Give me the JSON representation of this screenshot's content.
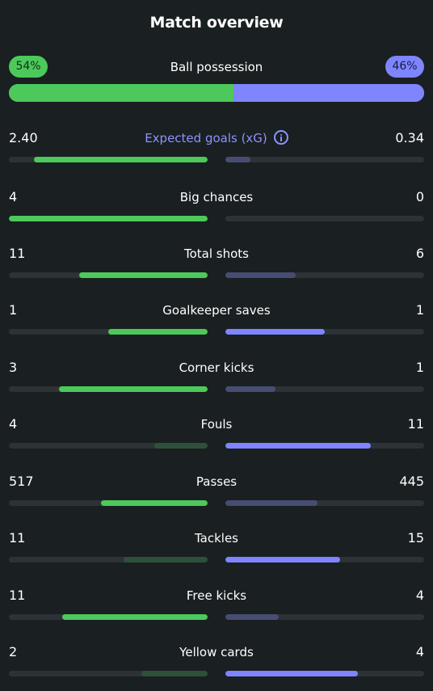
{
  "title": "Match overview",
  "colors": {
    "home": "#4cc95a",
    "away": "#7e85ff",
    "home_dim": "#2f5038",
    "away_dim": "#474d72",
    "track": "#2c3236",
    "background": "#1a1f21"
  },
  "possession": {
    "label": "Ball possession",
    "home_text": "54%",
    "away_text": "46%",
    "home": 54,
    "away": 46
  },
  "stats": [
    {
      "label": "Expected goals (xG)",
      "home_text": "2.40",
      "away_text": "0.34",
      "home": 2.4,
      "away": 0.34,
      "accent": true,
      "info_icon": "info-icon"
    },
    {
      "label": "Big chances",
      "home_text": "4",
      "away_text": "0",
      "home": 4,
      "away": 0
    },
    {
      "label": "Total shots",
      "home_text": "11",
      "away_text": "6",
      "home": 11,
      "away": 6
    },
    {
      "label": "Goalkeeper saves",
      "home_text": "1",
      "away_text": "1",
      "home": 1,
      "away": 1
    },
    {
      "label": "Corner kicks",
      "home_text": "3",
      "away_text": "1",
      "home": 3,
      "away": 1
    },
    {
      "label": "Fouls",
      "home_text": "4",
      "away_text": "11",
      "home": 4,
      "away": 11
    },
    {
      "label": "Passes",
      "home_text": "517",
      "away_text": "445",
      "home": 517,
      "away": 445
    },
    {
      "label": "Tackles",
      "home_text": "11",
      "away_text": "15",
      "home": 11,
      "away": 15
    },
    {
      "label": "Free kicks",
      "home_text": "11",
      "away_text": "4",
      "home": 11,
      "away": 4
    },
    {
      "label": "Yellow cards",
      "home_text": "2",
      "away_text": "4",
      "home": 2,
      "away": 4
    }
  ]
}
